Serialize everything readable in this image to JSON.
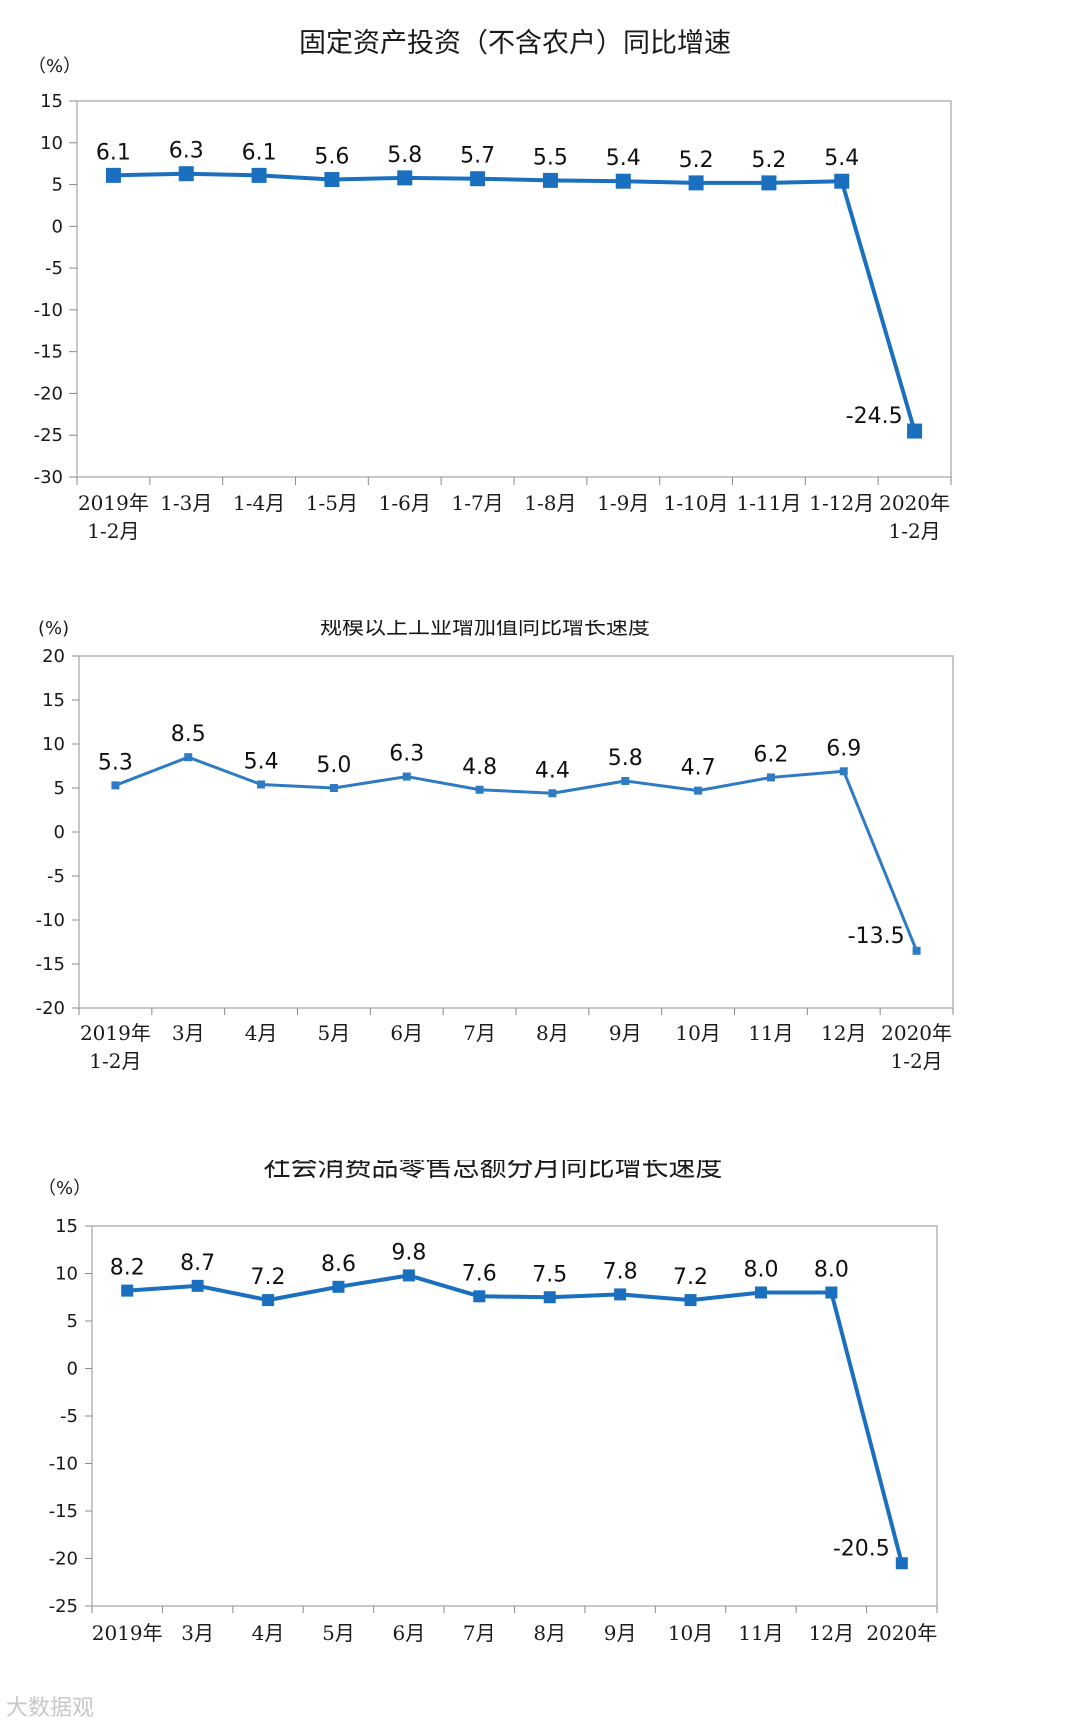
{
  "chart_data": [
    {
      "type": "line",
      "title": "固定资产投资（不含农户）同比增速",
      "unit_label": "（%）",
      "ylim": [
        -30,
        15
      ],
      "yticks": [
        15,
        10,
        5,
        0,
        -5,
        -10,
        -15,
        -20,
        -25,
        -30
      ],
      "categories": [
        "2019年\n1-2月",
        "1-3月",
        "1-4月",
        "1-5月",
        "1-6月",
        "1-7月",
        "1-8月",
        "1-9月",
        "1-10月",
        "1-11月",
        "1-12月",
        "2020年\n1-2月"
      ],
      "values": [
        6.1,
        6.3,
        6.1,
        5.6,
        5.8,
        5.7,
        5.5,
        5.4,
        5.2,
        5.2,
        5.4,
        -24.5
      ],
      "data_labels": [
        "6.1",
        "6.3",
        "6.1",
        "5.6",
        "5.8",
        "5.7",
        "5.5",
        "5.4",
        "5.2",
        "5.2",
        "5.4",
        "-24.5"
      ],
      "color": "#1b6fbf",
      "grid": false
    },
    {
      "type": "line",
      "title": "规模以上工业增加值同比增长速度",
      "unit_label": "(%)",
      "ylim": [
        -20,
        20
      ],
      "yticks": [
        20,
        15,
        10,
        5,
        0,
        -5,
        -10,
        -15,
        -20
      ],
      "categories": [
        "2019年\n1-2月",
        "3月",
        "4月",
        "5月",
        "6月",
        "7月",
        "8月",
        "9月",
        "10月",
        "11月",
        "12月",
        "2020年\n1-2月"
      ],
      "values": [
        5.3,
        8.5,
        5.4,
        5.0,
        6.3,
        4.8,
        4.4,
        5.8,
        4.7,
        6.2,
        6.9,
        -13.5
      ],
      "data_labels": [
        "5.3",
        "8.5",
        "5.4",
        "5.0",
        "6.3",
        "4.8",
        "4.4",
        "5.8",
        "4.7",
        "6.2",
        "6.9",
        "-13.5"
      ],
      "color": "#2e7bc4",
      "grid": false
    },
    {
      "type": "line",
      "title": "社会消费品零售总额分月同比增长速度",
      "unit_label": "（%）",
      "ylim": [
        -25,
        15
      ],
      "yticks": [
        15,
        10,
        5,
        0,
        -5,
        -10,
        -15,
        -20,
        -25
      ],
      "categories": [
        "2019年",
        "3月",
        "4月",
        "5月",
        "6月",
        "7月",
        "8月",
        "9月",
        "10月",
        "11月",
        "12月",
        "2020年"
      ],
      "values": [
        8.2,
        8.7,
        7.2,
        8.6,
        9.8,
        7.6,
        7.5,
        7.8,
        7.2,
        8.0,
        8.0,
        -20.5
      ],
      "data_labels": [
        "8.2",
        "8.7",
        "7.2",
        "8.6",
        "9.8",
        "7.6",
        "7.5",
        "7.8",
        "7.2",
        "8.0",
        "8.0",
        "-20.5"
      ],
      "color": "#1b6fbf",
      "grid": false
    }
  ],
  "watermark": "大数据观"
}
